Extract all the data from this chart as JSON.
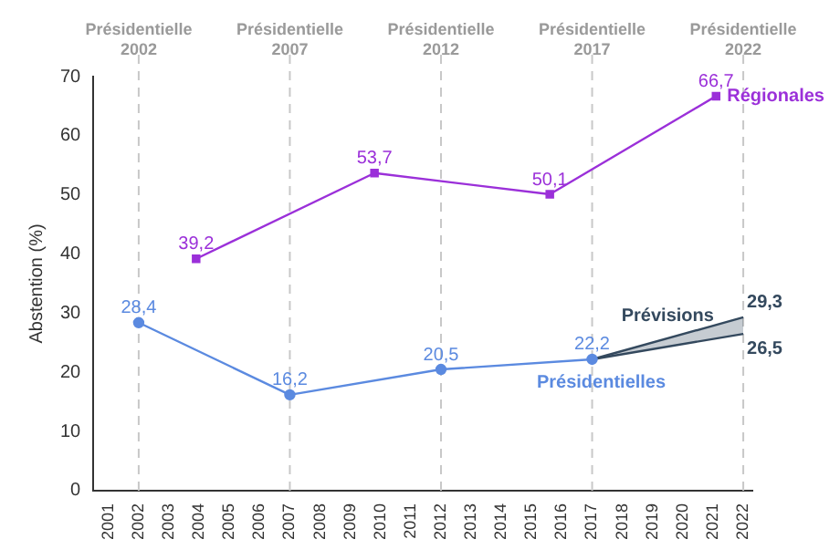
{
  "chart_data": {
    "type": "line",
    "ylabel": "Abstention (%)",
    "xlim": [
      2000.5,
      2022.3
    ],
    "xticks": [
      2001,
      2002,
      2003,
      2004,
      2005,
      2006,
      2007,
      2008,
      2009,
      2010,
      2011,
      2012,
      2013,
      2014,
      2015,
      2016,
      2017,
      2018,
      2019,
      2020,
      2021,
      2022
    ],
    "ylim": [
      0,
      70
    ],
    "yticks": [
      0,
      10,
      20,
      30,
      40,
      50,
      60,
      70
    ],
    "grid": false,
    "legend": false,
    "series": [
      {
        "name": "Régionales",
        "color": "#9b30d9",
        "marker": "square",
        "x": [
          2003.9,
          2009.8,
          2015.6,
          2021.1
        ],
        "values": [
          39.2,
          53.7,
          50.1,
          66.7
        ],
        "value_labels": [
          "39,2",
          "53,7",
          "50,1",
          "66,7"
        ]
      },
      {
        "name": "Présidentielles",
        "color": "#5b8ae0",
        "marker": "circle",
        "x": [
          2002,
          2007,
          2012,
          2017
        ],
        "values": [
          28.4,
          16.2,
          20.5,
          22.2
        ],
        "value_labels": [
          "28,4",
          "16,2",
          "20,5",
          "22,2"
        ]
      },
      {
        "name": "Prévisions",
        "type": "area",
        "color": "#34495e",
        "marker": "none",
        "x": [
          2017,
          2022
        ],
        "values": [
          null,
          null
        ],
        "lower": [
          22.2,
          26.5
        ],
        "upper": [
          22.2,
          29.3
        ]
      }
    ],
    "annotations": [
      {
        "text": "29,3",
        "x": 2022,
        "y": 29.3
      },
      {
        "text": "26,5",
        "x": 2022,
        "y": 26.5
      }
    ],
    "ref_lines": [
      {
        "axis": "x",
        "value": 2002,
        "label": "Présidentielle\n2002",
        "color": "#c8c8c8",
        "line_style": "dashed"
      },
      {
        "axis": "x",
        "value": 2007,
        "label": "Présidentielle\n2007",
        "color": "#c8c8c8",
        "line_style": "dashed"
      },
      {
        "axis": "x",
        "value": 2012,
        "label": "Présidentielle\n2012",
        "color": "#c8c8c8",
        "line_style": "dashed"
      },
      {
        "axis": "x",
        "value": 2017,
        "label": "Présidentielle\n2017",
        "color": "#c8c8c8",
        "line_style": "dashed"
      },
      {
        "axis": "x",
        "value": 2022,
        "label": "Présidentielle\n2022",
        "color": "#c8c8c8",
        "line_style": "dashed"
      }
    ]
  }
}
